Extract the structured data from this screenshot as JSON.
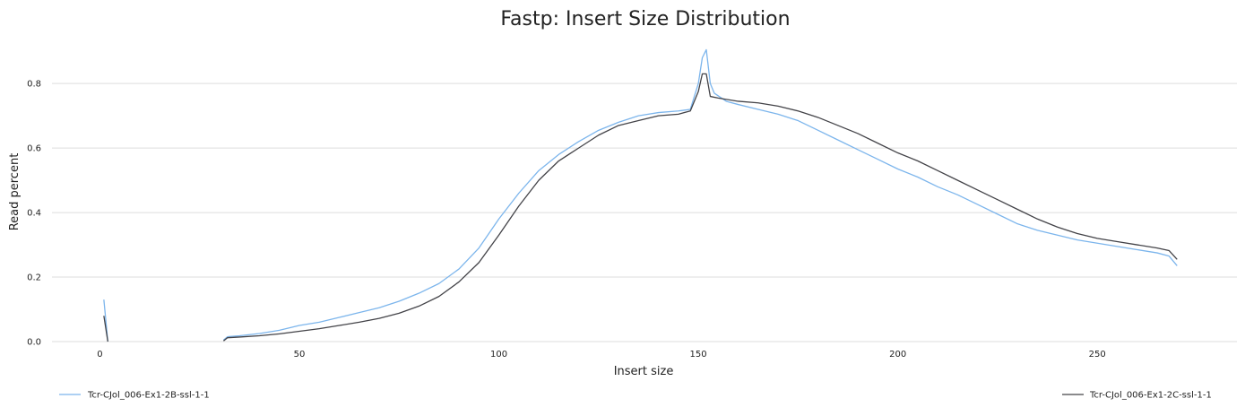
{
  "chart_data": {
    "type": "line",
    "title": "Fastp: Insert Size Distribution",
    "xlabel": "Insert size",
    "ylabel": "Read percent",
    "xlim": [
      -12,
      285
    ],
    "ylim": [
      0,
      0.92
    ],
    "xticks": [
      0,
      50,
      100,
      150,
      200,
      250
    ],
    "yticks": [
      0.0,
      0.2,
      0.4,
      0.6,
      0.8
    ],
    "xtick_labels": [
      "0",
      "50",
      "100",
      "150",
      "200",
      "250"
    ],
    "ytick_labels": [
      "0.0",
      "0.2",
      "0.4",
      "0.6",
      "0.8"
    ],
    "grid": true,
    "legend_position": "bottom",
    "series": [
      {
        "name": "Tcr-CJol_006-Ex1-2B-ssl-1-1",
        "color": "#7cb5ec",
        "segments": [
          [
            [
              1,
              0.13
            ],
            [
              2,
              0.0
            ]
          ],
          [
            [
              31,
              0.005
            ],
            [
              32,
              0.015
            ],
            [
              35,
              0.018
            ],
            [
              40,
              0.025
            ],
            [
              45,
              0.035
            ],
            [
              50,
              0.05
            ],
            [
              55,
              0.06
            ],
            [
              60,
              0.075
            ],
            [
              65,
              0.09
            ],
            [
              70,
              0.105
            ],
            [
              75,
              0.125
            ],
            [
              80,
              0.15
            ],
            [
              85,
              0.18
            ],
            [
              90,
              0.225
            ],
            [
              95,
              0.29
            ],
            [
              100,
              0.38
            ],
            [
              105,
              0.46
            ],
            [
              110,
              0.53
            ],
            [
              115,
              0.58
            ],
            [
              120,
              0.62
            ],
            [
              125,
              0.655
            ],
            [
              130,
              0.68
            ],
            [
              135,
              0.7
            ],
            [
              140,
              0.71
            ],
            [
              145,
              0.715
            ],
            [
              148,
              0.72
            ],
            [
              150,
              0.8
            ],
            [
              151,
              0.88
            ],
            [
              152,
              0.905
            ],
            [
              153,
              0.8
            ],
            [
              154,
              0.77
            ],
            [
              157,
              0.745
            ],
            [
              160,
              0.735
            ],
            [
              165,
              0.72
            ],
            [
              170,
              0.705
            ],
            [
              175,
              0.685
            ],
            [
              180,
              0.655
            ],
            [
              185,
              0.625
            ],
            [
              190,
              0.595
            ],
            [
              195,
              0.565
            ],
            [
              200,
              0.535
            ],
            [
              205,
              0.51
            ],
            [
              210,
              0.48
            ],
            [
              215,
              0.455
            ],
            [
              220,
              0.425
            ],
            [
              225,
              0.395
            ],
            [
              230,
              0.365
            ],
            [
              235,
              0.345
            ],
            [
              240,
              0.33
            ],
            [
              245,
              0.315
            ],
            [
              250,
              0.305
            ],
            [
              255,
              0.295
            ],
            [
              260,
              0.285
            ],
            [
              265,
              0.275
            ],
            [
              268,
              0.265
            ],
            [
              270,
              0.235
            ]
          ]
        ]
      },
      {
        "name": "Tcr-CJol_006-Ex1-2C-ssl-1-1",
        "color": "#434348",
        "segments": [
          [
            [
              1,
              0.08
            ],
            [
              2,
              0.0
            ]
          ],
          [
            [
              31,
              0.002
            ],
            [
              32,
              0.012
            ],
            [
              35,
              0.014
            ],
            [
              40,
              0.018
            ],
            [
              45,
              0.024
            ],
            [
              50,
              0.032
            ],
            [
              55,
              0.04
            ],
            [
              60,
              0.05
            ],
            [
              65,
              0.06
            ],
            [
              70,
              0.072
            ],
            [
              75,
              0.088
            ],
            [
              80,
              0.11
            ],
            [
              85,
              0.14
            ],
            [
              90,
              0.185
            ],
            [
              95,
              0.245
            ],
            [
              100,
              0.33
            ],
            [
              105,
              0.42
            ],
            [
              110,
              0.5
            ],
            [
              115,
              0.56
            ],
            [
              120,
              0.6
            ],
            [
              125,
              0.64
            ],
            [
              130,
              0.67
            ],
            [
              135,
              0.685
            ],
            [
              140,
              0.7
            ],
            [
              145,
              0.705
            ],
            [
              148,
              0.715
            ],
            [
              150,
              0.775
            ],
            [
              151,
              0.83
            ],
            [
              152,
              0.83
            ],
            [
              153,
              0.76
            ],
            [
              155,
              0.755
            ],
            [
              160,
              0.745
            ],
            [
              165,
              0.74
            ],
            [
              170,
              0.73
            ],
            [
              175,
              0.715
            ],
            [
              180,
              0.695
            ],
            [
              185,
              0.67
            ],
            [
              190,
              0.645
            ],
            [
              195,
              0.615
            ],
            [
              200,
              0.585
            ],
            [
              205,
              0.56
            ],
            [
              210,
              0.53
            ],
            [
              215,
              0.5
            ],
            [
              220,
              0.47
            ],
            [
              225,
              0.44
            ],
            [
              230,
              0.41
            ],
            [
              235,
              0.38
            ],
            [
              240,
              0.355
            ],
            [
              245,
              0.335
            ],
            [
              250,
              0.32
            ],
            [
              255,
              0.31
            ],
            [
              260,
              0.3
            ],
            [
              265,
              0.29
            ],
            [
              268,
              0.282
            ],
            [
              270,
              0.255
            ]
          ]
        ]
      }
    ]
  }
}
